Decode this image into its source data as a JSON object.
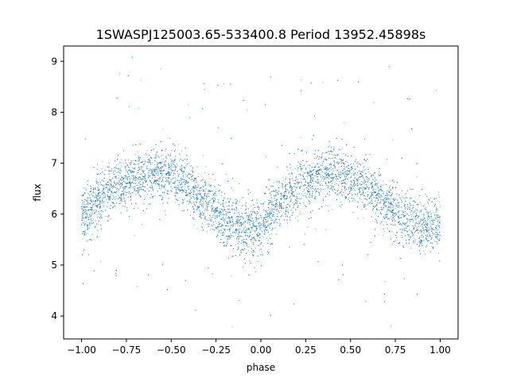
{
  "chart_data": {
    "type": "scatter",
    "title": "1SWASPJ125003.65-533400.8 Period 13952.45898s",
    "xlabel": "phase",
    "ylabel": "flux",
    "xlim": [
      -1.1,
      1.1
    ],
    "ylim": [
      3.55,
      9.3
    ],
    "grid": false,
    "point_color": "#1f77b4",
    "x_ticks": [
      {
        "value": -1.0,
        "label": "−1.00"
      },
      {
        "value": -0.75,
        "label": "−0.75"
      },
      {
        "value": -0.5,
        "label": "−0.50"
      },
      {
        "value": -0.25,
        "label": "−0.25"
      },
      {
        "value": 0.0,
        "label": "0.00"
      },
      {
        "value": 0.25,
        "label": "0.25"
      },
      {
        "value": 0.5,
        "label": "0.50"
      },
      {
        "value": 0.75,
        "label": "0.75"
      },
      {
        "value": 1.0,
        "label": "1.00"
      }
    ],
    "y_ticks": [
      {
        "value": 4,
        "label": "4"
      },
      {
        "value": 5,
        "label": "5"
      },
      {
        "value": 6,
        "label": "6"
      },
      {
        "value": 7,
        "label": "7"
      },
      {
        "value": 8,
        "label": "8"
      },
      {
        "value": 9,
        "label": "9"
      }
    ],
    "series": [
      {
        "name": "",
        "x": [
          -1.0,
          -0.95,
          -0.9,
          -0.85,
          -0.8,
          -0.75,
          -0.7,
          -0.65,
          -0.6,
          -0.55,
          -0.5,
          -0.45,
          -0.4,
          -0.35,
          -0.3,
          -0.25,
          -0.2,
          -0.15,
          -0.1,
          -0.05,
          0.0,
          0.05,
          0.1,
          0.15,
          0.2,
          0.25,
          0.3,
          0.35,
          0.4,
          0.45,
          0.5,
          0.55,
          0.6,
          0.65,
          0.7,
          0.75,
          0.8,
          0.85,
          0.9,
          0.95,
          1.0
        ],
        "y": [
          5.95,
          6.1,
          6.3,
          6.45,
          6.55,
          6.65,
          6.72,
          6.78,
          6.8,
          6.8,
          6.75,
          6.65,
          6.5,
          6.35,
          6.2,
          6.05,
          5.9,
          5.78,
          5.7,
          5.68,
          5.75,
          5.95,
          6.15,
          6.35,
          6.5,
          6.62,
          6.72,
          6.78,
          6.8,
          6.78,
          6.72,
          6.62,
          6.5,
          6.35,
          6.2,
          6.05,
          5.9,
          5.8,
          5.75,
          5.75,
          5.8
        ]
      }
    ]
  }
}
